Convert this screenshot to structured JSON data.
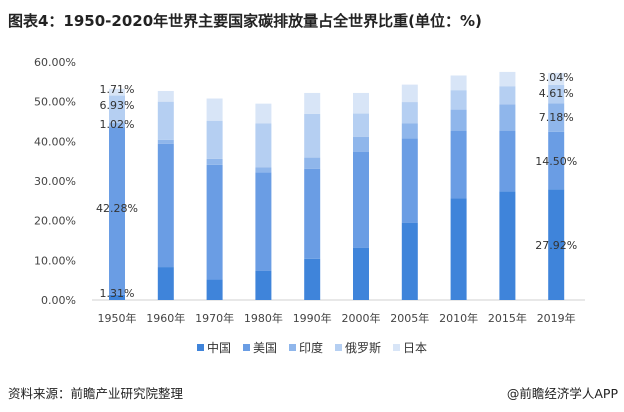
{
  "title": "图表4：1950-2020年世界主要国家碳排放量占全世界比重(单位：%)",
  "chart_data": {
    "type": "bar",
    "stacked": true,
    "categories": [
      "1950年",
      "1960年",
      "1970年",
      "1980年",
      "1990年",
      "2000年",
      "2005年",
      "2010年",
      "2015年",
      "2019年"
    ],
    "series": [
      {
        "name": "中国",
        "color": "#3f84da",
        "values": [
          1.31,
          8.3,
          5.2,
          7.4,
          10.4,
          13.2,
          19.5,
          25.6,
          27.4,
          27.92
        ]
      },
      {
        "name": "美国",
        "color": "#6a9de4",
        "values": [
          42.28,
          31.1,
          28.9,
          24.8,
          22.7,
          24.2,
          21.2,
          17.1,
          15.3,
          14.5
        ]
      },
      {
        "name": "印度",
        "color": "#8fb6eb",
        "values": [
          1.02,
          1.0,
          1.5,
          1.2,
          2.8,
          3.7,
          3.8,
          5.3,
          6.6,
          7.18
        ]
      },
      {
        "name": "俄罗斯",
        "color": "#b5cff2",
        "values": [
          6.93,
          9.6,
          9.6,
          11.1,
          11.0,
          5.9,
          5.4,
          4.9,
          4.6,
          4.61
        ]
      },
      {
        "name": "日本",
        "color": "#d8e5f7",
        "values": [
          1.71,
          2.7,
          5.6,
          5.0,
          5.3,
          5.2,
          4.4,
          3.7,
          3.6,
          3.04
        ]
      }
    ],
    "data_labels": [
      {
        "category": "1950年",
        "series": "中国",
        "text": "1.31%"
      },
      {
        "category": "1950年",
        "series": "美国",
        "text": "42.28%"
      },
      {
        "category": "1950年",
        "series": "印度",
        "text": "1.02%"
      },
      {
        "category": "1950年",
        "series": "俄罗斯",
        "text": "6.93%"
      },
      {
        "category": "1950年",
        "series": "日本",
        "text": "1.71%"
      },
      {
        "category": "2019年",
        "series": "中国",
        "text": "27.92%"
      },
      {
        "category": "2019年",
        "series": "美国",
        "text": "14.50%"
      },
      {
        "category": "2019年",
        "series": "印度",
        "text": "7.18%"
      },
      {
        "category": "2019年",
        "series": "俄罗斯",
        "text": "4.61%"
      },
      {
        "category": "2019年",
        "series": "日本",
        "text": "3.04%"
      }
    ],
    "yticks": [
      "0.00%",
      "10.00%",
      "20.00%",
      "30.00%",
      "40.00%",
      "50.00%",
      "60.00%"
    ],
    "ylim": [
      0,
      60
    ],
    "grid": false,
    "legend": "bottom"
  },
  "footer": {
    "source": "资料来源：前瞻产业研究院整理",
    "brand": "@前瞻经济学人APP"
  }
}
